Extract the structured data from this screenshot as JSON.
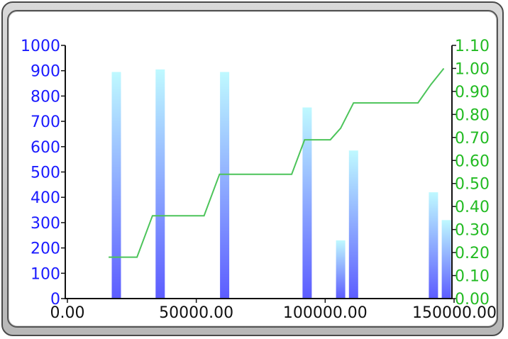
{
  "chart_data": {
    "type": "bar",
    "title": "",
    "xlabel": "",
    "ylabel": "",
    "y2label": "",
    "xlim": [
      0,
      150000
    ],
    "ylim": [
      0,
      1000
    ],
    "y2lim": [
      0,
      1.1
    ],
    "grid": false,
    "x_tick_labels": [
      "0.00",
      "50000.00",
      "100000.00",
      "150000.00"
    ],
    "x_ticks": [
      0,
      50000,
      100000,
      150000
    ],
    "y_tick_labels": [
      "0",
      "100",
      "200",
      "300",
      "400",
      "500",
      "600",
      "700",
      "800",
      "900",
      "1000"
    ],
    "y_ticks": [
      0,
      100,
      200,
      300,
      400,
      500,
      600,
      700,
      800,
      900,
      1000
    ],
    "y2_tick_labels": [
      "0.00",
      "0.10",
      "0.20",
      "0.30",
      "0.40",
      "0.50",
      "0.60",
      "0.70",
      "0.80",
      "0.90",
      "1.00",
      "1.10"
    ],
    "y2_ticks": [
      0,
      0.1,
      0.2,
      0.3,
      0.4,
      0.5,
      0.6,
      0.7,
      0.8,
      0.9,
      1.0,
      1.1
    ],
    "bars": [
      {
        "x": 19000,
        "y": 895
      },
      {
        "x": 36000,
        "y": 905
      },
      {
        "x": 61000,
        "y": 895
      },
      {
        "x": 93000,
        "y": 755
      },
      {
        "x": 106000,
        "y": 230
      },
      {
        "x": 111000,
        "y": 585
      },
      {
        "x": 142000,
        "y": 420
      },
      {
        "x": 147000,
        "y": 310
      }
    ],
    "line": {
      "axis": "right",
      "color": "#4cc45a",
      "points": [
        {
          "x": 16000,
          "y": 0.18
        },
        {
          "x": 27000,
          "y": 0.18
        },
        {
          "x": 33000,
          "y": 0.36
        },
        {
          "x": 53000,
          "y": 0.36
        },
        {
          "x": 59000,
          "y": 0.54
        },
        {
          "x": 87000,
          "y": 0.54
        },
        {
          "x": 92000,
          "y": 0.69
        },
        {
          "x": 102000,
          "y": 0.69
        },
        {
          "x": 106000,
          "y": 0.74
        },
        {
          "x": 111000,
          "y": 0.85
        },
        {
          "x": 136000,
          "y": 0.85
        },
        {
          "x": 141000,
          "y": 0.93
        },
        {
          "x": 146000,
          "y": 1.0
        }
      ]
    },
    "colors": {
      "left_axis": "#1a1aff",
      "right_axis": "#22bb22",
      "bottom_axis": "#111111",
      "bar_top": "#bff9ff",
      "bar_bottom": "#5c5cff"
    }
  }
}
